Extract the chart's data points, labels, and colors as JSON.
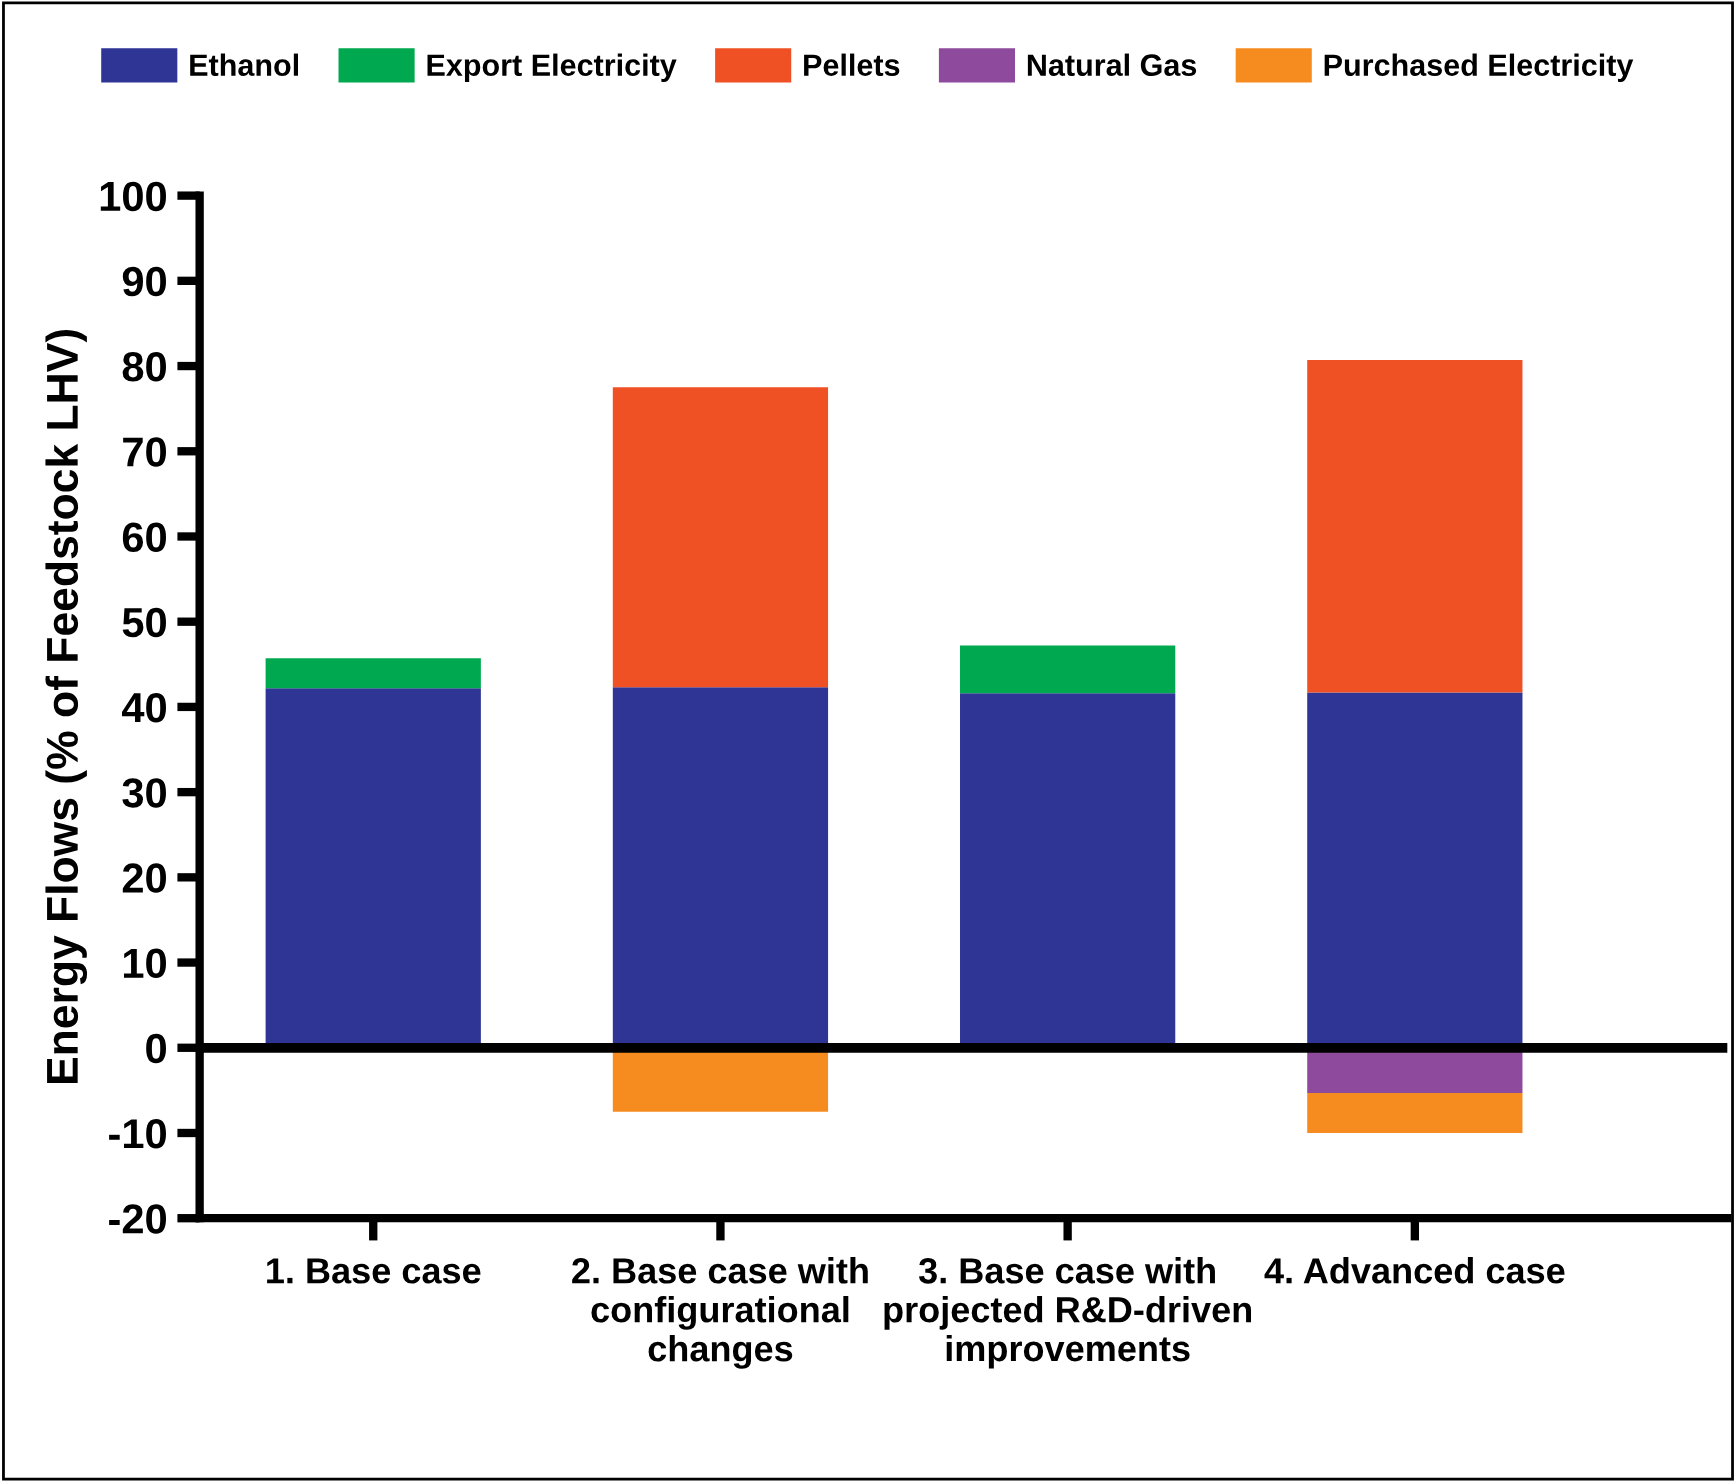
{
  "chart_data": {
    "type": "bar",
    "stacked": true,
    "ylabel": "Energy Flows (% of Feedstock LHV)",
    "categories": [
      "1. Base case",
      "2. Base case with\nconfigurational\nchanges",
      "3. Base case with\nprojected R&D-driven\nimprovements",
      "4. Advanced case"
    ],
    "series": [
      {
        "name": "Ethanol",
        "color": "#2e3594",
        "values": [
          42.2,
          42.3,
          41.6,
          41.7
        ]
      },
      {
        "name": "Export Electricity",
        "color": "#00a94f",
        "values": [
          3.5,
          null,
          5.6,
          null
        ]
      },
      {
        "name": "Pellets",
        "color": "#ef5124",
        "values": [
          null,
          35.2,
          null,
          39.0
        ]
      },
      {
        "name": "Natural Gas",
        "color": "#8e4a9c",
        "values": [
          null,
          null,
          null,
          -5.3
        ]
      },
      {
        "name": "Purchased Electricity",
        "color": "#f68b1f",
        "values": [
          null,
          -7.5,
          null,
          -4.7
        ]
      }
    ],
    "ylim": [
      -20,
      100
    ],
    "yticks": [
      -20,
      -10,
      0,
      10,
      20,
      30,
      40,
      50,
      60,
      70,
      80,
      90,
      100
    ],
    "ref_lines": [
      {
        "axis": "y",
        "value": 0,
        "color": "#000000"
      }
    ],
    "grid": false,
    "legend": "top"
  }
}
